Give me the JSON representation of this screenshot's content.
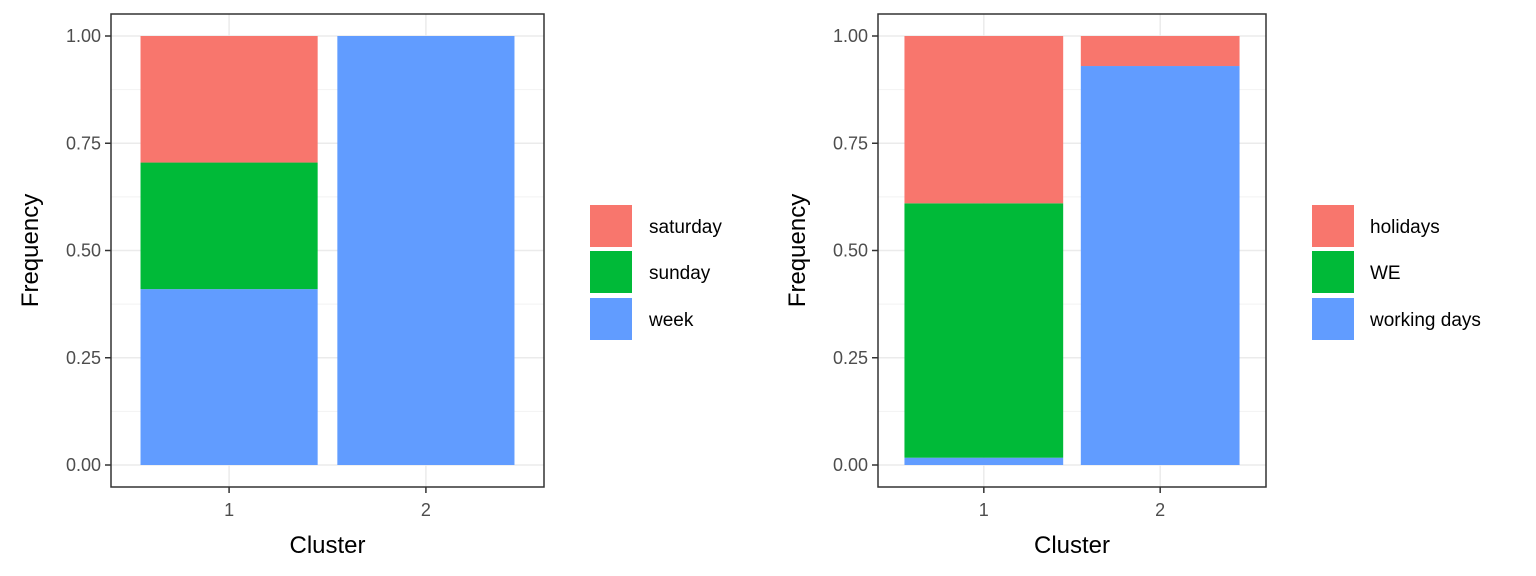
{
  "chart_data": [
    {
      "type": "bar",
      "stacked": true,
      "categories": [
        "1",
        "2"
      ],
      "xlabel": "Cluster",
      "ylabel": "Frequency",
      "ylim": [
        0,
        1
      ],
      "yticks": [
        "0.00",
        "0.25",
        "0.50",
        "0.75",
        "1.00"
      ],
      "grid": true,
      "legend_position": "right",
      "series": [
        {
          "name": "week",
          "color": "#619CFF",
          "values": [
            0.41,
            1.0
          ]
        },
        {
          "name": "sunday",
          "color": "#00BA38",
          "values": [
            0.295,
            0.0
          ]
        },
        {
          "name": "saturday",
          "color": "#F8766D",
          "values": [
            0.295,
            0.0
          ]
        }
      ],
      "legend_order": [
        "saturday",
        "sunday",
        "week"
      ]
    },
    {
      "type": "bar",
      "stacked": true,
      "categories": [
        "1",
        "2"
      ],
      "xlabel": "Cluster",
      "ylabel": "Frequency",
      "ylim": [
        0,
        1
      ],
      "yticks": [
        "0.00",
        "0.25",
        "0.50",
        "0.75",
        "1.00"
      ],
      "grid": true,
      "legend_position": "right",
      "series": [
        {
          "name": "working days",
          "color": "#619CFF",
          "values": [
            0.017,
            0.93
          ]
        },
        {
          "name": "WE",
          "color": "#00BA38",
          "values": [
            0.593,
            0.0
          ]
        },
        {
          "name": "holidays",
          "color": "#F8766D",
          "values": [
            0.39,
            0.07
          ]
        }
      ],
      "legend_order": [
        "holidays",
        "WE",
        "working days"
      ]
    }
  ]
}
